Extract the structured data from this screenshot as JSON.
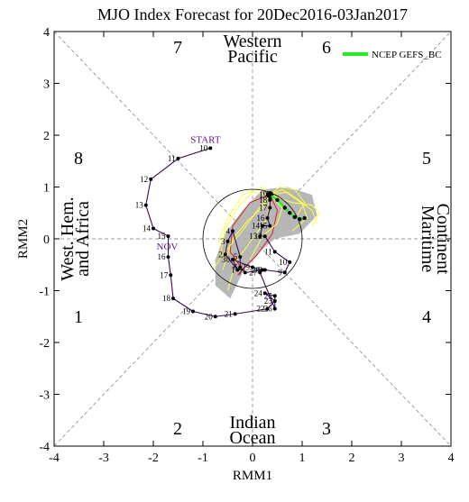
{
  "chart_data": {
    "type": "scatter",
    "title": "MJO Index Forecast for 20Dec2016-03Jan2017",
    "xlabel": "RMM1",
    "ylabel": "RMM2",
    "xlim": [
      -4,
      4
    ],
    "ylim": [
      -4,
      4
    ],
    "x_ticks": [
      "-4",
      "-3",
      "-2",
      "-1",
      "0",
      "1",
      "2",
      "3",
      "4"
    ],
    "y_ticks": [
      "-4",
      "-3",
      "-2",
      "-1",
      "0",
      "1",
      "2",
      "3",
      "4"
    ],
    "grid": false,
    "legend": {
      "position": "top-right",
      "entries": [
        {
          "name": "NCEP GEFS_BC",
          "color": "#22ee22"
        }
      ]
    },
    "phase_numbers": [
      "1",
      "2",
      "3",
      "4",
      "5",
      "6",
      "7",
      "8"
    ],
    "region_labels": {
      "top": [
        "Western",
        "Pacific"
      ],
      "bottom": [
        "Indian",
        "Ocean"
      ],
      "left": [
        "West. Hem.",
        "and Africa"
      ],
      "right": [
        "Maritime",
        "Continent"
      ]
    },
    "annotations": {
      "start": "START",
      "nov": "NOV"
    },
    "unit_circle_radius": 1,
    "observed": [
      {
        "day": "10",
        "x": -0.85,
        "y": 1.75
      },
      {
        "day": "11",
        "x": -1.5,
        "y": 1.55
      },
      {
        "day": "12",
        "x": -2.05,
        "y": 1.15
      },
      {
        "day": "13",
        "x": -2.15,
        "y": 0.65
      },
      {
        "day": "14",
        "x": -2.0,
        "y": 0.2
      },
      {
        "day": "15",
        "x": -1.7,
        "y": 0.05
      },
      {
        "day": "16",
        "x": -1.7,
        "y": -0.35
      },
      {
        "day": "17",
        "x": -1.65,
        "y": -0.7
      },
      {
        "day": "18",
        "x": -1.6,
        "y": -1.15
      },
      {
        "day": "19",
        "x": -1.2,
        "y": -1.4
      },
      {
        "day": "20",
        "x": -0.75,
        "y": -1.5
      },
      {
        "day": "21",
        "x": -0.35,
        "y": -1.45
      },
      {
        "day": "22",
        "x": 0.3,
        "y": -1.35
      },
      {
        "day": "23",
        "x": 0.45,
        "y": -1.2
      },
      {
        "day": "24",
        "x": 0.25,
        "y": -1.05
      },
      {
        "day": "25",
        "x": 0.45,
        "y": -1.1
      },
      {
        "day": "26",
        "x": 0.45,
        "y": -1.35
      },
      {
        "day": "27",
        "x": 0.15,
        "y": -0.65
      },
      {
        "day": "28",
        "x": 0.2,
        "y": -0.6
      },
      {
        "day": "29",
        "x": 0.0,
        "y": -0.55
      },
      {
        "day": "30",
        "x": -0.4,
        "y": -0.4
      },
      {
        "day": "1",
        "x": -0.3,
        "y": -0.6
      },
      {
        "day": "2",
        "x": -0.55,
        "y": -0.3
      },
      {
        "day": "3",
        "x": -0.5,
        "y": -0.05
      },
      {
        "day": "4",
        "x": -0.4,
        "y": 0.15
      },
      {
        "day": "5",
        "x": -0.25,
        "y": -0.35
      },
      {
        "day": "6",
        "x": -0.25,
        "y": -0.55
      },
      {
        "day": "7",
        "x": -0.15,
        "y": -0.65
      },
      {
        "day": "8",
        "x": 0.25,
        "y": -0.6
      },
      {
        "day": "9",
        "x": 0.65,
        "y": -0.65
      },
      {
        "day": "10",
        "x": 0.75,
        "y": -0.45
      },
      {
        "day": "11",
        "x": 0.45,
        "y": -0.25
      },
      {
        "day": "12",
        "x": 0.25,
        "y": 0.05
      },
      {
        "day": "13",
        "x": 0.15,
        "y": 0.05
      },
      {
        "day": "14",
        "x": 0.2,
        "y": 0.25
      },
      {
        "day": "15",
        "x": 0.35,
        "y": 0.25
      },
      {
        "day": "16",
        "x": 0.3,
        "y": 0.4
      },
      {
        "day": "17",
        "x": 0.35,
        "y": 0.6
      },
      {
        "day": "18",
        "x": 0.35,
        "y": 0.75
      },
      {
        "day": "19",
        "x": 0.35,
        "y": 0.85
      }
    ],
    "forecast_mean": [
      {
        "x": 0.35,
        "y": 0.85
      },
      {
        "x": 0.5,
        "y": 0.75
      },
      {
        "x": 0.65,
        "y": 0.6
      },
      {
        "x": 0.75,
        "y": 0.5
      },
      {
        "x": 0.85,
        "y": 0.42
      },
      {
        "x": 0.95,
        "y": 0.38
      },
      {
        "x": 1.05,
        "y": 0.4
      }
    ],
    "forecast_spread_polygon": [
      {
        "x": -0.75,
        "y": -0.4
      },
      {
        "x": -0.55,
        "y": 0.1
      },
      {
        "x": -0.2,
        "y": 0.55
      },
      {
        "x": 0.2,
        "y": 0.95
      },
      {
        "x": 0.7,
        "y": 1.0
      },
      {
        "x": 1.2,
        "y": 0.85
      },
      {
        "x": 1.3,
        "y": 0.45
      },
      {
        "x": 0.95,
        "y": 0.1
      },
      {
        "x": 0.45,
        "y": 0.0
      },
      {
        "x": 0.2,
        "y": -0.2
      },
      {
        "x": -0.15,
        "y": -0.55
      },
      {
        "x": -0.45,
        "y": -1.15
      },
      {
        "x": -0.75,
        "y": -0.9
      }
    ],
    "ensemble_members": [
      [
        {
          "x": 0.35,
          "y": 0.85
        },
        {
          "x": 0.6,
          "y": 0.95
        },
        {
          "x": 0.9,
          "y": 0.75
        },
        {
          "x": 1.2,
          "y": 0.55
        },
        {
          "x": 1.3,
          "y": 0.3
        }
      ],
      [
        {
          "x": 0.35,
          "y": 0.85
        },
        {
          "x": 0.2,
          "y": 0.6
        },
        {
          "x": -0.1,
          "y": 0.35
        },
        {
          "x": -0.4,
          "y": 0.0
        },
        {
          "x": -0.6,
          "y": -0.6
        }
      ],
      [
        {
          "x": 0.35,
          "y": 0.85
        },
        {
          "x": 0.0,
          "y": 0.9
        },
        {
          "x": -0.3,
          "y": 0.6
        },
        {
          "x": -0.55,
          "y": 0.2
        },
        {
          "x": -0.65,
          "y": -0.35
        }
      ],
      [
        {
          "x": 0.35,
          "y": 0.85
        },
        {
          "x": 0.7,
          "y": 0.9
        },
        {
          "x": 1.0,
          "y": 0.7
        },
        {
          "x": 1.1,
          "y": 0.4
        },
        {
          "x": 0.8,
          "y": 0.15
        }
      ],
      [
        {
          "x": 0.35,
          "y": 0.85
        },
        {
          "x": 0.5,
          "y": 0.55
        },
        {
          "x": 0.4,
          "y": 0.1
        },
        {
          "x": 0.1,
          "y": -0.3
        },
        {
          "x": -0.3,
          "y": -0.7
        }
      ],
      [
        {
          "x": 0.35,
          "y": 0.85
        },
        {
          "x": 0.2,
          "y": 1.0
        },
        {
          "x": -0.2,
          "y": 0.85
        },
        {
          "x": -0.5,
          "y": 0.4
        },
        {
          "x": -0.7,
          "y": -0.1
        }
      ],
      [
        {
          "x": 0.35,
          "y": 0.85
        },
        {
          "x": 0.8,
          "y": 0.7
        },
        {
          "x": 1.2,
          "y": 0.65
        },
        {
          "x": 1.35,
          "y": 0.5
        },
        {
          "x": 1.2,
          "y": 0.25
        }
      ],
      [
        {
          "x": 0.35,
          "y": 0.85
        },
        {
          "x": 0.3,
          "y": 0.4
        },
        {
          "x": 0.0,
          "y": 0.0
        },
        {
          "x": -0.35,
          "y": -0.45
        },
        {
          "x": -0.5,
          "y": -1.0
        }
      ],
      [
        {
          "x": 0.35,
          "y": 0.85
        },
        {
          "x": 0.55,
          "y": 1.0
        },
        {
          "x": 0.85,
          "y": 0.95
        },
        {
          "x": 1.05,
          "y": 0.7
        },
        {
          "x": 0.9,
          "y": 0.45
        }
      ],
      [
        {
          "x": 0.35,
          "y": 0.85
        },
        {
          "x": -0.05,
          "y": 0.7
        },
        {
          "x": -0.4,
          "y": 0.25
        },
        {
          "x": -0.45,
          "y": -0.25
        },
        {
          "x": -0.2,
          "y": -0.6
        }
      ],
      [
        {
          "x": 0.35,
          "y": 0.85
        },
        {
          "x": 0.6,
          "y": 0.6
        },
        {
          "x": 0.5,
          "y": 0.3
        },
        {
          "x": 0.2,
          "y": 0.05
        },
        {
          "x": -0.05,
          "y": -0.4
        }
      ],
      [
        {
          "x": 0.35,
          "y": 0.85
        },
        {
          "x": 0.1,
          "y": 0.55
        },
        {
          "x": -0.25,
          "y": 0.1
        },
        {
          "x": -0.6,
          "y": -0.3
        },
        {
          "x": -0.8,
          "y": -0.6
        }
      ]
    ],
    "colors": {
      "observed": "#3a0a5a",
      "observed_label": "#5a1a8a",
      "forecast_mean": "#22ee22",
      "ensemble": "#ffff44",
      "spread": "#aaaaaa",
      "red_members": "#dd2222"
    }
  }
}
